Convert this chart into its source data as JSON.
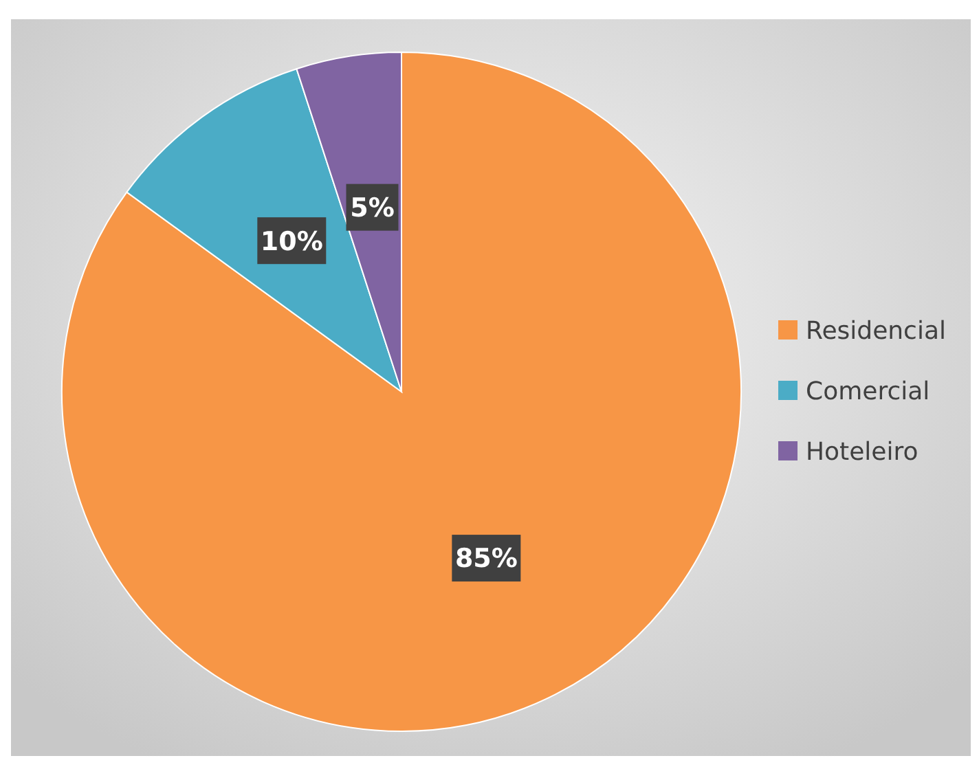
{
  "chart_data": {
    "type": "pie",
    "categories": [
      "Residencial",
      "Comercial",
      "Hoteleiro"
    ],
    "values": [
      85,
      10,
      5
    ],
    "colors": [
      "#f79646",
      "#4bacc6",
      "#8064a2"
    ],
    "value_labels": [
      "85%",
      "10%",
      "5%"
    ],
    "legend": "right"
  }
}
